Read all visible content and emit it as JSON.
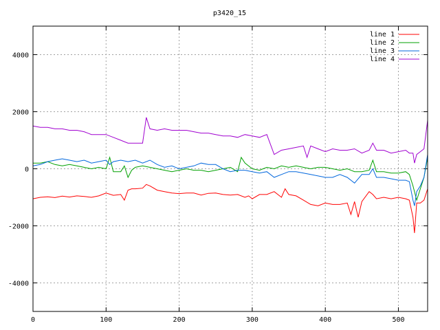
{
  "chart_data": {
    "type": "line",
    "title": "p3420_15",
    "xlabel": "",
    "ylabel": "",
    "xlim": [
      0,
      540
    ],
    "ylim": [
      -5000,
      5000
    ],
    "xticks": [
      0,
      100,
      200,
      300,
      400,
      500
    ],
    "yticks": [
      -4000,
      -2000,
      0,
      2000,
      4000
    ],
    "grid": true,
    "legend_position": "top-right",
    "series": [
      {
        "name": "line 1",
        "color": "#ff0000",
        "x": [
          0,
          10,
          20,
          30,
          40,
          50,
          60,
          70,
          80,
          90,
          100,
          110,
          120,
          125,
          130,
          135,
          140,
          150,
          155,
          160,
          170,
          180,
          190,
          200,
          210,
          220,
          230,
          240,
          250,
          260,
          270,
          280,
          290,
          295,
          300,
          310,
          320,
          330,
          340,
          345,
          350,
          360,
          370,
          380,
          390,
          400,
          410,
          420,
          430,
          435,
          440,
          445,
          450,
          460,
          465,
          470,
          480,
          490,
          500,
          510,
          515,
          520,
          522,
          525,
          530,
          535,
          540
        ],
        "y": [
          -1050,
          -1000,
          -980,
          -1010,
          -960,
          -990,
          -950,
          -970,
          -1000,
          -950,
          -850,
          -930,
          -900,
          -1100,
          -750,
          -700,
          -700,
          -680,
          -550,
          -600,
          -750,
          -800,
          -850,
          -870,
          -850,
          -850,
          -920,
          -860,
          -850,
          -900,
          -920,
          -900,
          -1000,
          -950,
          -1050,
          -900,
          -900,
          -800,
          -1000,
          -700,
          -900,
          -950,
          -1100,
          -1250,
          -1300,
          -1200,
          -1250,
          -1250,
          -1200,
          -1600,
          -1150,
          -1700,
          -1150,
          -800,
          -900,
          -1050,
          -1000,
          -1050,
          -1000,
          -1050,
          -1100,
          -1700,
          -2250,
          -1200,
          -1200,
          -1100,
          -700
        ]
      },
      {
        "name": "line 2",
        "color": "#00a000",
        "x": [
          0,
          10,
          20,
          30,
          40,
          50,
          60,
          70,
          80,
          90,
          100,
          105,
          110,
          120,
          125,
          130,
          135,
          140,
          150,
          160,
          170,
          180,
          190,
          200,
          210,
          220,
          230,
          240,
          250,
          260,
          270,
          280,
          285,
          290,
          300,
          310,
          320,
          330,
          340,
          350,
          360,
          370,
          380,
          390,
          400,
          410,
          420,
          430,
          440,
          450,
          460,
          465,
          470,
          480,
          490,
          500,
          510,
          515,
          520,
          525,
          530,
          535,
          540
        ],
        "y": [
          200,
          200,
          250,
          150,
          100,
          150,
          100,
          50,
          0,
          50,
          0,
          400,
          -100,
          -100,
          100,
          -300,
          -50,
          50,
          100,
          50,
          0,
          -50,
          -100,
          -50,
          0,
          -50,
          -50,
          -100,
          -50,
          0,
          50,
          -100,
          400,
          200,
          0,
          -50,
          50,
          0,
          100,
          50,
          100,
          50,
          0,
          50,
          50,
          0,
          -50,
          0,
          -100,
          -100,
          -50,
          300,
          -100,
          -100,
          -150,
          -150,
          -100,
          -200,
          -600,
          -1100,
          -700,
          -300,
          400
        ]
      },
      {
        "name": "line 3",
        "color": "#0066dd",
        "x": [
          0,
          10,
          20,
          30,
          40,
          50,
          60,
          70,
          80,
          90,
          100,
          105,
          110,
          120,
          130,
          140,
          150,
          160,
          170,
          180,
          190,
          200,
          210,
          220,
          230,
          240,
          250,
          260,
          270,
          280,
          290,
          300,
          310,
          320,
          330,
          340,
          350,
          360,
          370,
          380,
          390,
          400,
          410,
          420,
          430,
          440,
          450,
          460,
          465,
          470,
          480,
          490,
          500,
          510,
          515,
          520,
          522,
          525,
          530,
          535,
          540
        ],
        "y": [
          100,
          150,
          250,
          300,
          350,
          300,
          250,
          300,
          200,
          250,
          300,
          150,
          250,
          300,
          250,
          300,
          200,
          300,
          150,
          50,
          100,
          0,
          50,
          100,
          200,
          150,
          150,
          0,
          -100,
          -50,
          -50,
          -100,
          -150,
          -100,
          -300,
          -200,
          -100,
          -100,
          -150,
          -200,
          -250,
          -300,
          -300,
          -200,
          -300,
          -500,
          -200,
          -200,
          0,
          -300,
          -300,
          -350,
          -400,
          -400,
          -450,
          -1100,
          -1300,
          -800,
          -600,
          -300,
          500
        ]
      },
      {
        "name": "line 4",
        "color": "#a000d0",
        "x": [
          0,
          10,
          20,
          30,
          40,
          50,
          60,
          70,
          80,
          90,
          100,
          110,
          120,
          130,
          140,
          150,
          155,
          160,
          170,
          180,
          190,
          200,
          210,
          220,
          230,
          240,
          250,
          260,
          270,
          280,
          290,
          300,
          310,
          320,
          330,
          340,
          350,
          360,
          370,
          375,
          380,
          390,
          400,
          410,
          420,
          430,
          440,
          450,
          460,
          465,
          470,
          480,
          490,
          500,
          510,
          515,
          520,
          522,
          525,
          530,
          535,
          540
        ],
        "y": [
          1500,
          1450,
          1450,
          1400,
          1400,
          1350,
          1350,
          1300,
          1200,
          1200,
          1200,
          1100,
          1000,
          900,
          900,
          900,
          1800,
          1400,
          1350,
          1400,
          1350,
          1350,
          1350,
          1300,
          1250,
          1250,
          1200,
          1150,
          1150,
          1100,
          1200,
          1150,
          1100,
          1200,
          500,
          650,
          700,
          750,
          800,
          400,
          800,
          700,
          600,
          700,
          650,
          650,
          700,
          550,
          650,
          900,
          650,
          650,
          550,
          600,
          650,
          550,
          550,
          200,
          500,
          600,
          700,
          1700
        ]
      }
    ]
  }
}
